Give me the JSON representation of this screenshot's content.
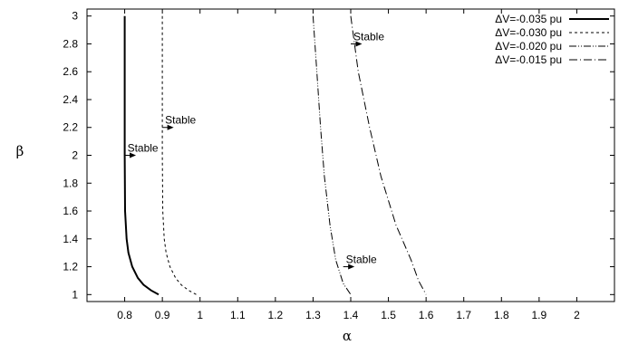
{
  "chart_data": {
    "type": "line",
    "xlabel": "α",
    "ylabel": "β",
    "xlim": [
      0.7,
      2.1
    ],
    "ylim": [
      0.95,
      3.05
    ],
    "xticks": [
      "0.8",
      "0.9",
      "1",
      "1.1",
      "1.2",
      "1.3",
      "1.4",
      "1.5",
      "1.6",
      "1.7",
      "1.8",
      "1.9",
      "2"
    ],
    "yticks": [
      "1",
      "1.2",
      "1.4",
      "1.6",
      "1.8",
      "2",
      "2.2",
      "2.4",
      "2.6",
      "2.8",
      "3"
    ],
    "grid": false,
    "legend_position": "top-right",
    "series": [
      {
        "name": "ΔV=-0.035 pu",
        "dash": "solid",
        "points": [
          [
            0.8,
            3.0
          ],
          [
            0.8,
            2.0
          ],
          [
            0.801,
            1.6
          ],
          [
            0.805,
            1.4
          ],
          [
            0.81,
            1.3
          ],
          [
            0.82,
            1.2
          ],
          [
            0.835,
            1.12
          ],
          [
            0.85,
            1.07
          ],
          [
            0.87,
            1.03
          ],
          [
            0.89,
            1.0
          ]
        ]
      },
      {
        "name": "ΔV=-0.030 pu",
        "dash": "dashed",
        "points": [
          [
            0.9,
            3.0
          ],
          [
            0.9,
            2.0
          ],
          [
            0.901,
            1.6
          ],
          [
            0.905,
            1.4
          ],
          [
            0.91,
            1.3
          ],
          [
            0.92,
            1.2
          ],
          [
            0.935,
            1.12
          ],
          [
            0.95,
            1.07
          ],
          [
            0.97,
            1.03
          ],
          [
            0.99,
            1.0
          ]
        ]
      },
      {
        "name": "ΔV=-0.020 pu",
        "dash": "dash-dot-dot",
        "points": [
          [
            1.3,
            3.0
          ],
          [
            1.31,
            2.6
          ],
          [
            1.32,
            2.2
          ],
          [
            1.33,
            1.85
          ],
          [
            1.345,
            1.5
          ],
          [
            1.36,
            1.25
          ],
          [
            1.38,
            1.08
          ],
          [
            1.4,
            1.0
          ]
        ]
      },
      {
        "name": "ΔV=-0.015 pu",
        "dash": "dash-dot",
        "points": [
          [
            1.4,
            3.0
          ],
          [
            1.42,
            2.6
          ],
          [
            1.45,
            2.2
          ],
          [
            1.48,
            1.85
          ],
          [
            1.52,
            1.5
          ],
          [
            1.56,
            1.25
          ],
          [
            1.58,
            1.1
          ],
          [
            1.6,
            1.0
          ]
        ]
      }
    ],
    "annotations": [
      {
        "text": "Stable",
        "x": 0.8,
        "y": 2.0,
        "arrow_to_x": 0.83
      },
      {
        "text": "Stable",
        "x": 0.9,
        "y": 2.2,
        "arrow_to_x": 0.93
      },
      {
        "text": "Stable",
        "x": 1.38,
        "y": 1.2,
        "arrow_to_x": 1.41
      },
      {
        "text": "Stable",
        "x": 1.4,
        "y": 2.8,
        "arrow_to_x": 1.43
      }
    ]
  }
}
